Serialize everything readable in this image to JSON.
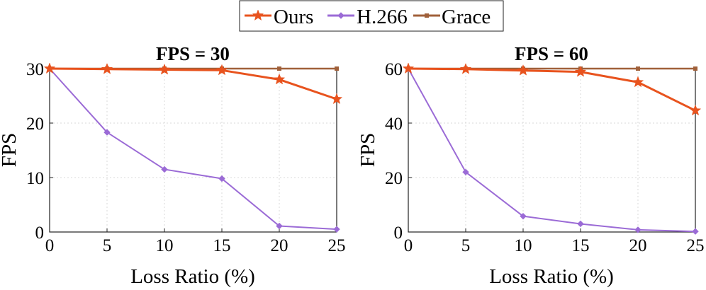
{
  "legend": {
    "entries": [
      {
        "name": "Ours",
        "color": "#E8531E",
        "marker": "star"
      },
      {
        "name": "H.266",
        "color": "#9B6BD6",
        "marker": "diamond"
      },
      {
        "name": "Grace",
        "color": "#A0603A",
        "marker": "square"
      }
    ]
  },
  "chart_data": [
    {
      "type": "line",
      "title": "FPS = 30",
      "xlabel": "Loss Ratio (%)",
      "ylabel": "FPS",
      "x": [
        0,
        5,
        10,
        15,
        20,
        25
      ],
      "xlim": [
        0,
        25
      ],
      "ylim": [
        0,
        30
      ],
      "xticks": [
        "0",
        "5",
        "10",
        "15",
        "20",
        "25"
      ],
      "yticks": [
        "0",
        "10",
        "20",
        "30"
      ],
      "series": [
        {
          "name": "Ours",
          "values": [
            30,
            29.9,
            29.8,
            29.7,
            28,
            24.4
          ]
        },
        {
          "name": "H.266",
          "values": [
            30,
            18.3,
            11.5,
            9.8,
            1.1,
            0.5
          ]
        },
        {
          "name": "Grace",
          "values": [
            30,
            30,
            30,
            30,
            30,
            30
          ]
        }
      ]
    },
    {
      "type": "line",
      "title": "FPS = 60",
      "xlabel": "Loss Ratio (%)",
      "ylabel": "FPS",
      "x": [
        0,
        5,
        10,
        15,
        20,
        25
      ],
      "xlim": [
        0,
        25
      ],
      "ylim": [
        0,
        60
      ],
      "xticks": [
        "0",
        "5",
        "10",
        "15",
        "20",
        "25"
      ],
      "yticks": [
        "0",
        "20",
        "40",
        "60"
      ],
      "series": [
        {
          "name": "Ours",
          "values": [
            60,
            59.8,
            59.3,
            58.8,
            55,
            44.6
          ]
        },
        {
          "name": "H.266",
          "values": [
            60,
            22,
            5.8,
            3,
            0.8,
            0.2
          ]
        },
        {
          "name": "Grace",
          "values": [
            60,
            60,
            60,
            60,
            60,
            60
          ]
        }
      ]
    }
  ]
}
